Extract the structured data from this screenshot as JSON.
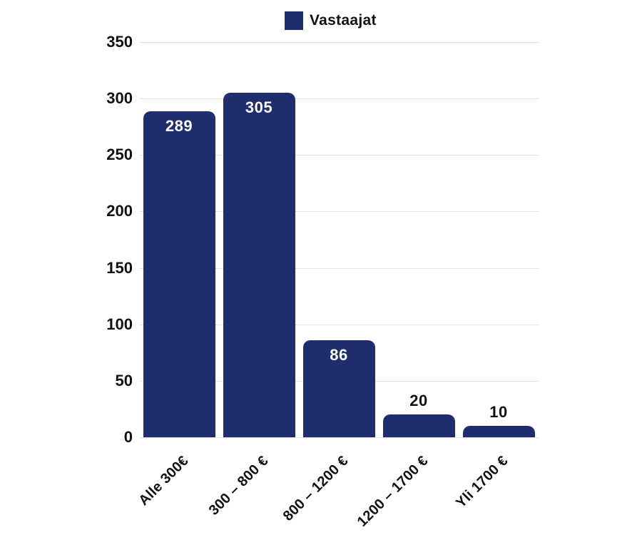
{
  "legend": {
    "label": "Vastaajat",
    "swatch_color": "#1f2c6d"
  },
  "chart_data": {
    "type": "bar",
    "title": "",
    "xlabel": "",
    "ylabel": "",
    "series_name": "Vastaajat",
    "categories": [
      "Alle 300€",
      "300 – 800 €",
      "800 – 1200 €",
      "1200 – 1700 €",
      "Yli 1700 €"
    ],
    "values": [
      289,
      305,
      86,
      20,
      10
    ],
    "ylim": [
      0,
      350
    ],
    "yticks": [
      0,
      50,
      100,
      150,
      200,
      250,
      300,
      350
    ],
    "grid": true,
    "legend_position": "top-center",
    "bar_color": "#1f2c6d",
    "gridline_color": "#e2e2e2",
    "value_label_color_inside": "#ffffff",
    "value_label_color_outside": "#111111",
    "axis_text_color": "#111111"
  }
}
